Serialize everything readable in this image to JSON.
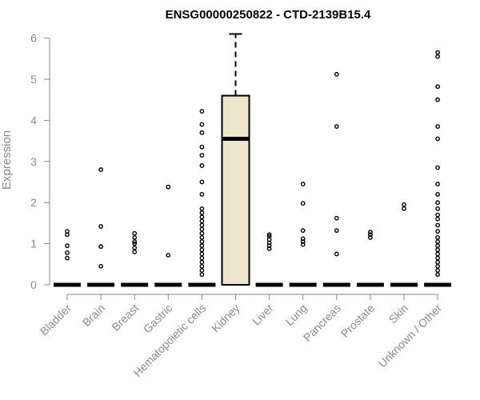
{
  "chart_data": {
    "type": "box",
    "title": "ENSG00000250822 - CTD-2139B15.4",
    "ylabel": "Expression",
    "xlabel": "",
    "ylim": [
      0,
      6.1
    ],
    "yticks": [
      0,
      1,
      2,
      3,
      4,
      5,
      6
    ],
    "ytick_labels": [
      "0",
      "1",
      "2",
      "3",
      "4",
      "5",
      "6"
    ],
    "grid": false,
    "colors": {
      "box_fill": "#ede6cc",
      "stroke": "#000000",
      "label": "#8a8a8a"
    },
    "categories": [
      "Bladder",
      "Brain",
      "Breast",
      "Gastric",
      "Hematopoietic cells",
      "Kidney",
      "Liver",
      "Lung",
      "Pancreas",
      "Prostate",
      "Skin",
      "Unknown / Other"
    ],
    "boxes": [
      {
        "category": "Bladder",
        "q1": 0,
        "median": 0,
        "q3": 0,
        "whisker_low": 0,
        "whisker_high": 0,
        "outliers": [
          0.65,
          0.78,
          0.95,
          1.22,
          1.3
        ]
      },
      {
        "category": "Brain",
        "q1": 0,
        "median": 0,
        "q3": 0,
        "whisker_low": 0,
        "whisker_high": 0,
        "outliers": [
          0.45,
          0.93,
          1.42,
          2.8
        ]
      },
      {
        "category": "Breast",
        "q1": 0,
        "median": 0,
        "q3": 0,
        "whisker_low": 0,
        "whisker_high": 0,
        "outliers": [
          0.8,
          0.9,
          1.0,
          1.05,
          1.15,
          1.25
        ]
      },
      {
        "category": "Gastric",
        "q1": 0,
        "median": 0,
        "q3": 0,
        "whisker_low": 0,
        "whisker_high": 0,
        "outliers": [
          0.72,
          2.38
        ]
      },
      {
        "category": "Hematopoietic cells",
        "q1": 0,
        "median": 0,
        "q3": 0,
        "whisker_low": 0,
        "whisker_high": 0,
        "outliers": [
          0.25,
          0.35,
          0.45,
          0.55,
          0.65,
          0.75,
          0.85,
          0.95,
          1.05,
          1.15,
          1.25,
          1.35,
          1.45,
          1.55,
          1.65,
          1.75,
          1.85,
          2.2,
          2.5,
          2.9,
          3.15,
          3.35,
          3.7,
          3.9,
          4.22
        ]
      },
      {
        "category": "Kidney",
        "q1": 0,
        "median": 3.55,
        "q3": 4.6,
        "whisker_low": 0,
        "whisker_high": 6.1,
        "outliers": []
      },
      {
        "category": "Liver",
        "q1": 0,
        "median": 0,
        "q3": 0,
        "whisker_low": 0,
        "whisker_high": 0,
        "outliers": [
          0.88,
          0.95,
          1.02,
          1.1,
          1.18,
          1.22
        ]
      },
      {
        "category": "Lung",
        "q1": 0,
        "median": 0,
        "q3": 0,
        "whisker_low": 0,
        "whisker_high": 0,
        "outliers": [
          0.98,
          1.05,
          1.12,
          1.32,
          1.98,
          2.45
        ]
      },
      {
        "category": "Pancreas",
        "q1": 0,
        "median": 0,
        "q3": 0,
        "whisker_low": 0,
        "whisker_high": 0,
        "outliers": [
          0.75,
          1.32,
          1.62,
          3.85,
          5.12
        ]
      },
      {
        "category": "Prostate",
        "q1": 0,
        "median": 0,
        "q3": 0,
        "whisker_low": 0,
        "whisker_high": 0,
        "outliers": [
          1.15,
          1.22,
          1.28
        ]
      },
      {
        "category": "Skin",
        "q1": 0,
        "median": 0,
        "q3": 0,
        "whisker_low": 0,
        "whisker_high": 0,
        "outliers": [
          1.85,
          1.95
        ]
      },
      {
        "category": "Unknown / Other",
        "q1": 0,
        "median": 0,
        "q3": 0,
        "whisker_low": 0,
        "whisker_high": 0,
        "outliers": [
          0.25,
          0.35,
          0.45,
          0.55,
          0.65,
          0.75,
          0.85,
          0.95,
          1.05,
          1.15,
          1.3,
          1.45,
          1.6,
          1.7,
          1.85,
          2.0,
          2.2,
          2.45,
          2.85,
          3.55,
          3.85,
          4.5,
          4.82,
          5.55,
          5.65
        ]
      }
    ]
  }
}
